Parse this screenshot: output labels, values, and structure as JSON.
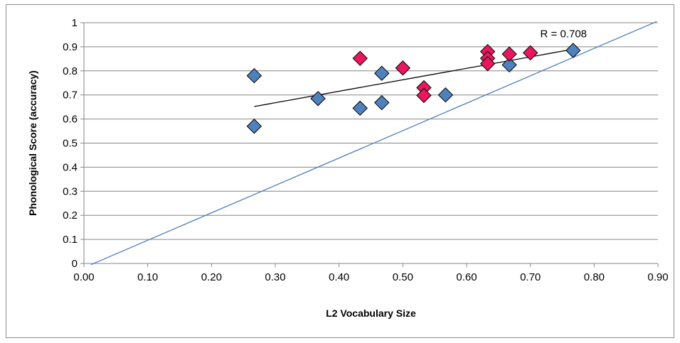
{
  "chart_data": {
    "type": "scatter",
    "title": "",
    "xlabel": "L2 Vocabulary Size",
    "ylabel": "Phonological Score (accuracy)",
    "xlim": [
      0,
      0.9
    ],
    "ylim": [
      0,
      1
    ],
    "x_ticks": [
      "0.00",
      "0.10",
      "0.20",
      "0.30",
      "0.40",
      "0.50",
      "0.60",
      "0.70",
      "0.80",
      "0.90"
    ],
    "y_ticks": [
      "0",
      "0.1",
      "0.2",
      "0.3",
      "0.4",
      "0.5",
      "0.6",
      "0.7",
      "0.8",
      "0.9",
      "1"
    ],
    "grid": {
      "horizontal": true,
      "vertical": false
    },
    "legend": "none",
    "series": [
      {
        "color": "#4f81bd",
        "marker": "diamond",
        "points": [
          {
            "x": 0.267,
            "y": 0.78
          },
          {
            "x": 0.267,
            "y": 0.57
          },
          {
            "x": 0.367,
            "y": 0.685
          },
          {
            "x": 0.433,
            "y": 0.645
          },
          {
            "x": 0.467,
            "y": 0.79
          },
          {
            "x": 0.467,
            "y": 0.668
          },
          {
            "x": 0.567,
            "y": 0.7
          },
          {
            "x": 0.667,
            "y": 0.825
          },
          {
            "x": 0.767,
            "y": 0.885
          }
        ]
      },
      {
        "color": "#e8185e",
        "marker": "diamond",
        "points": [
          {
            "x": 0.433,
            "y": 0.852
          },
          {
            "x": 0.5,
            "y": 0.812
          },
          {
            "x": 0.533,
            "y": 0.73
          },
          {
            "x": 0.533,
            "y": 0.698
          },
          {
            "x": 0.633,
            "y": 0.88
          },
          {
            "x": 0.633,
            "y": 0.852
          },
          {
            "x": 0.633,
            "y": 0.83
          },
          {
            "x": 0.667,
            "y": 0.87
          },
          {
            "x": 0.7,
            "y": 0.875
          }
        ]
      }
    ],
    "trendline": {
      "color": "#000000",
      "x": [
        0.267,
        0.767
      ],
      "y": [
        0.652,
        0.89
      ]
    },
    "reference_line": {
      "color": "#4a7ebb",
      "x": [
        0.011,
        0.898
      ],
      "y": [
        -0.005,
        1.005
      ]
    },
    "annotations": [
      {
        "text": "R = 0.708",
        "x": 0.752,
        "y": 0.955
      }
    ]
  }
}
